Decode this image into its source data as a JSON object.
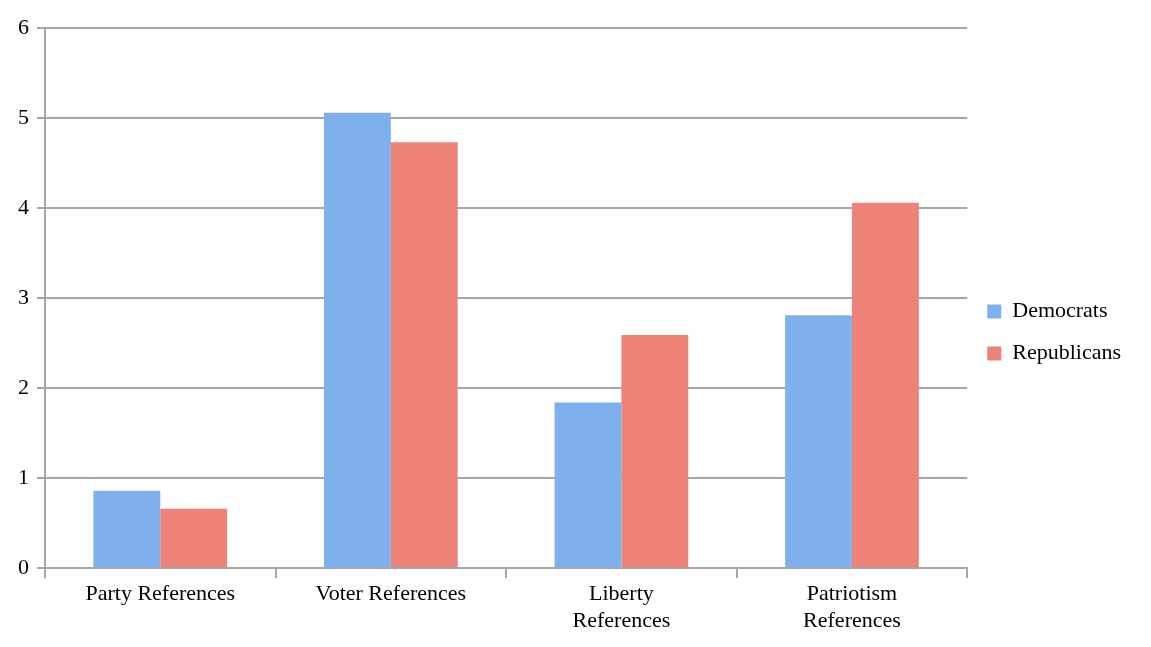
{
  "chart_data": {
    "type": "bar",
    "categories": [
      "Party References",
      "Voter References",
      "Liberty References",
      "Patriotism References"
    ],
    "series": [
      {
        "name": "Democrats",
        "color": "#7fb0ee",
        "values": [
          0.86,
          5.06,
          1.84,
          2.81
        ]
      },
      {
        "name": "Republicans",
        "color": "#ec8278",
        "values": [
          0.66,
          4.73,
          2.59,
          4.06
        ]
      }
    ],
    "ylim": [
      0,
      6
    ],
    "yticks": [
      0,
      1,
      2,
      3,
      4,
      5,
      6
    ],
    "grid": "y",
    "legend": "right"
  }
}
